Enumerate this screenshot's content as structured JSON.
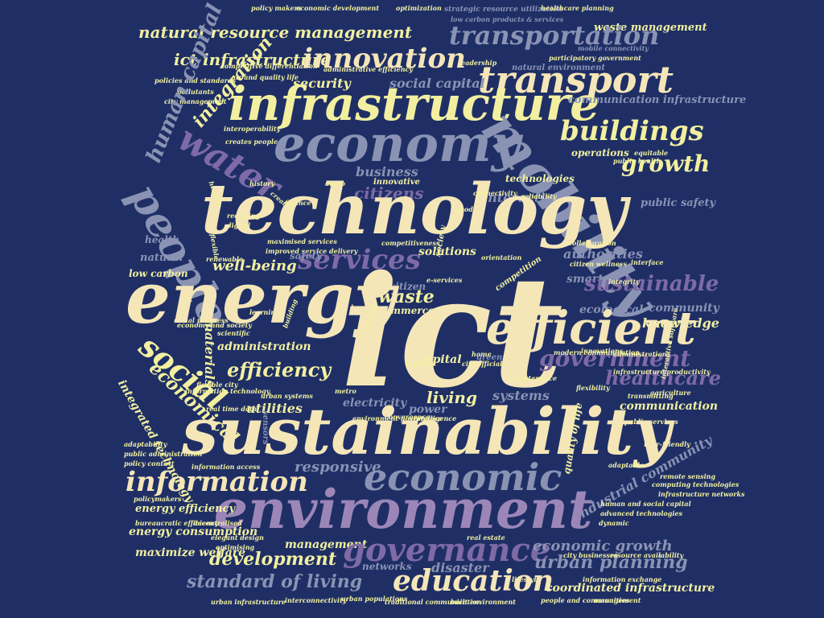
{
  "colors": {
    "background": "#1f2f66",
    "cream": "#f5e6b8",
    "yellow": "#f2f0a0",
    "lavender": "#9c86b8",
    "slate": "#8a93b3",
    "purple": "#7e6aa6"
  },
  "words": {
    "ict": "ict",
    "technology": "technology",
    "sustainability": "sustainability",
    "energy": "energy",
    "environment": "environment",
    "infrastructure": "infrastructure",
    "economy": "economy",
    "mobility": "mobility",
    "efficient": "efficient",
    "people": "people",
    "water": "water",
    "innovation": "innovation",
    "transport": "transport",
    "transportation": "transportation",
    "buildings": "buildings",
    "growth": "growth",
    "information": "information",
    "economic": "economic",
    "governance": "governance",
    "education": "education",
    "development": "development",
    "government": "government",
    "services": "services",
    "social": "social",
    "efficiency": "efficiency",
    "citizens": "citizens",
    "sustainable": "sustainable",
    "natural_resource_management": "natural resource management",
    "ict_infrastructure": "ict infrastructure",
    "human_capital": "human capital",
    "standard_of_living": "standard of living",
    "urban_planning": "urban planning",
    "economic_growth": "economic growth",
    "energy_efficiency": "energy efficiency",
    "energy_consumption": "energy consumption",
    "maximize_welfare": "maximize welfare",
    "well_being": "well-being",
    "healthcare": "healthcare",
    "waste": "waste",
    "living": "living",
    "responsive": "responsive",
    "business": "business",
    "interactive": "interactive",
    "security": "security",
    "integration": "integration",
    "knowledge": "knowledge",
    "community": "community",
    "public_safety": "public safety",
    "waste_management": "waste management",
    "materials": "materials",
    "health": "health",
    "natural": "natural",
    "low_carbon": "low carbon",
    "administration": "administration",
    "utilities": "utilities",
    "electricity": "electricity",
    "systems": "systems",
    "capital": "capital",
    "solutions": "solutions",
    "ecological": "ecological",
    "authorities": "authorities",
    "smart": "smart",
    "management": "management",
    "networks": "networks",
    "disaster": "disaster",
    "coordinated_infrastructure": "coordinated infrastructure",
    "industrial_community": "industrial community",
    "quality_of_life": "quality of life",
    "communication": "communication",
    "operations": "operations",
    "technologies": "technologies",
    "social_capital": "social capital",
    "natural_environment": "natural environment",
    "communication_infrastructure": "communication infrastructure",
    "commerce": "commerce",
    "citizen": "citizen",
    "safety": "safety",
    "power": "power",
    "innovative": "innovative",
    "competitiveness": "competitiveness",
    "economical": "economical",
    "integrated_technology": "integrated technology",
    "adaptability": "adaptability",
    "policy_makers": "policy makers",
    "optimization": "optimization",
    "healthcare_planning": "healthcare planning",
    "leadership": "leadership",
    "participatory_government": "participatory government",
    "mobile_connectivity": "mobile connectivity",
    "strategic_resource_utilization": "strategic resource utilization",
    "low_carbon_products": "low carbon products & services",
    "competitive_differentiation": "competitive differentiation",
    "administrative_efficiency": "administrative efficiency",
    "policies_and_standards": "policies and standards",
    "pollutants": "pollutants",
    "city_management": "city management",
    "air_and_quality_life": "air and quality life",
    "interoperability": "interoperability",
    "creates_people": "creates people",
    "sensors": "sensors",
    "green": "green",
    "flexibility": "flexibility",
    "agriculture": "agriculture",
    "user_friendly": "user-friendly",
    "adaptable": "adaptable",
    "dynamic": "dynamic",
    "lifestyle": "lifestyle",
    "traditional_communication": "traditional communication",
    "built_environment": "built environment",
    "urban_infrastructure": "urban infrastructure",
    "interconnectivity": "interconnectivity",
    "urban_populations": "urban populations",
    "people_and_communities": "people and communities",
    "real_estate": "real estate",
    "elegant_design": "elegant design",
    "optimising": "optimising",
    "advanced_technologies": "advanced technologies",
    "human_and_social_capital": "human and social capital",
    "city_businesses": "city businesses",
    "resource_availability": "resource availability",
    "information_exchange": "information exchange",
    "infrastructure_networks": "infrastructure networks",
    "remote_sensing": "remote sensing",
    "computing_technologies": "computing technologies",
    "decentralised": "decentralised",
    "bureaucratic_efficiency": "bureaucratic efficiency",
    "policymakers": "policymakers",
    "public_administration": "public administration",
    "policy_context": "policy context",
    "information_access": "information access",
    "real_time_data": "real time data",
    "urban_systems": "urban systems",
    "flexible_city": "flexible city",
    "metro": "metro",
    "interactive_software": "interactive software",
    "transmitting": "transmitting",
    "integrity": "integrity",
    "happiness": "happiness",
    "learning": "learning",
    "economy_and_society": "economy and society",
    "modern_communication": "modern communication",
    "innovations": "innovations",
    "administrations": "administrations",
    "infrastructure_productivity": "infrastructure productivity",
    "public_services": "public services",
    "intelligence": "intelligence",
    "competition": "competition",
    "connectivity": "connectivity",
    "society": "society",
    "orientation": "orientation",
    "collaboration": "collaboration",
    "citizen_wellness": "citizen wellness",
    "interface": "interface",
    "public_health": "public health",
    "equitable": "equitable",
    "reliability": "reliability",
    "good": "good",
    "finance": "finance",
    "e_services": "e-services",
    "digital": "digital",
    "recycling": "recycling",
    "history": "history",
    "audio": "audio",
    "flexible": "flexible",
    "healthy": "healthy",
    "creative": "creative",
    "economic_development": "economic development",
    "renewable": "renewable",
    "improved_service_delivery": "improved service delivery",
    "maximised_services": "maximised services",
    "social_progress": "social progress",
    "scientific": "scientific",
    "information_technology": "information technology",
    "environment_governance": "environment governance",
    "convergence": "convergence",
    "wireless": "wireless",
    "home": "home",
    "city_officials": "city officials",
    "maintenance": "maintenance",
    "building": "building",
    "logistics": "logistics"
  }
}
